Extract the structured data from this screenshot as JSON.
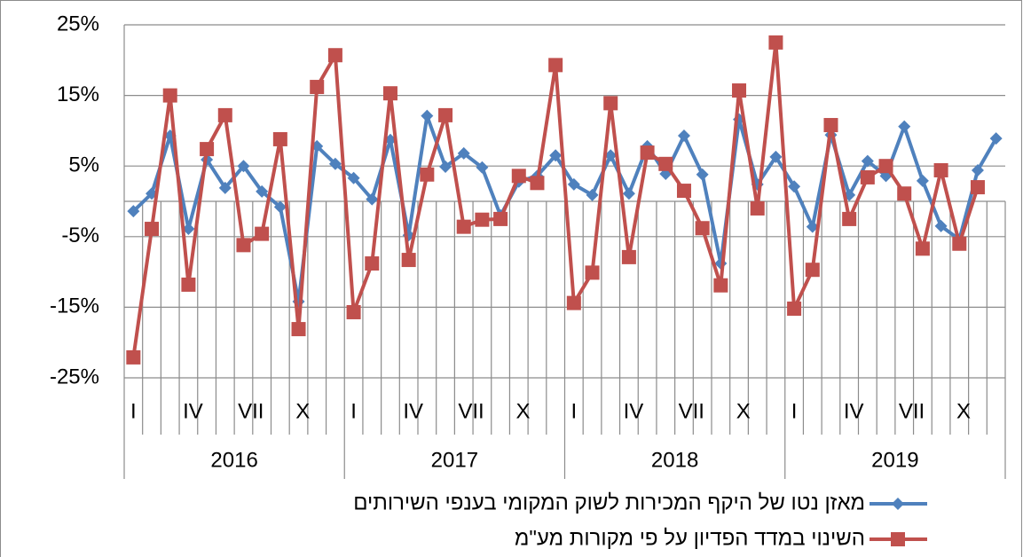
{
  "chart_data": {
    "type": "line",
    "categories": [
      "I",
      null,
      null,
      "IV",
      null,
      null,
      "VII",
      null,
      null,
      "X",
      null,
      null,
      "I",
      null,
      null,
      "IV",
      null,
      null,
      "VII",
      null,
      null,
      "X",
      null,
      null,
      "I",
      null,
      null,
      "IV",
      null,
      null,
      "VII",
      null,
      null,
      "X",
      null,
      null,
      "I",
      null,
      null,
      "IV",
      null,
      null,
      "VII",
      null,
      null,
      "X",
      null,
      null
    ],
    "groups": [
      "2016",
      "2017",
      "2018",
      "2019"
    ],
    "series": [
      {
        "name": "מאזן נטו של היקף המכירות לשוק המקומי בענפי השירותים",
        "color": "#4f81bd",
        "marker": "diamond",
        "values": [
          -1.4,
          1.1,
          9.3,
          -3.9,
          5.9,
          1.9,
          5.0,
          1.4,
          -0.8,
          -14.2,
          7.8,
          5.3,
          3.3,
          0.3,
          8.7,
          -4.8,
          12.1,
          4.9,
          6.8,
          4.8,
          -2.0,
          2.8,
          3.6,
          6.5,
          2.4,
          0.9,
          6.5,
          1.1,
          7.8,
          3.9,
          9.3,
          3.8,
          -8.8,
          11.6,
          2.4,
          6.3,
          2.1,
          -3.6,
          9.4,
          0.9,
          5.7,
          3.6,
          10.6,
          2.9,
          -3.5,
          -5.4,
          4.4,
          8.9
        ]
      },
      {
        "name": "השינוי במדד הפדיון על פי מקורות מע\"מ",
        "color": "#c0504d",
        "marker": "square",
        "values": [
          -22.1,
          -3.9,
          15.0,
          -11.8,
          7.4,
          12.2,
          -6.2,
          -4.6,
          8.8,
          -18.1,
          16.2,
          20.7,
          -15.7,
          -8.8,
          15.3,
          -8.3,
          3.8,
          12.2,
          -3.6,
          -2.6,
          -2.5,
          3.6,
          2.6,
          19.3,
          -14.4,
          -10.1,
          13.9,
          -7.9,
          6.9,
          5.3,
          1.5,
          -3.8,
          -11.9,
          15.7,
          -1.0,
          22.5,
          -15.2,
          -9.7,
          10.8,
          -2.5,
          3.4,
          5.0,
          1.1,
          -6.7,
          4.4,
          -6.0,
          2.0,
          null
        ]
      }
    ],
    "ylim": [
      -25,
      25
    ],
    "yticks": [
      {
        "value": -25,
        "label": "-25%"
      },
      {
        "value": -15,
        "label": "-15%"
      },
      {
        "value": -5,
        "label": "-5%"
      },
      {
        "value": 5,
        "label": "5%"
      },
      {
        "value": 15,
        "label": "15%"
      },
      {
        "value": 25,
        "label": "25%"
      }
    ],
    "grid": true,
    "legend": "bottom"
  }
}
